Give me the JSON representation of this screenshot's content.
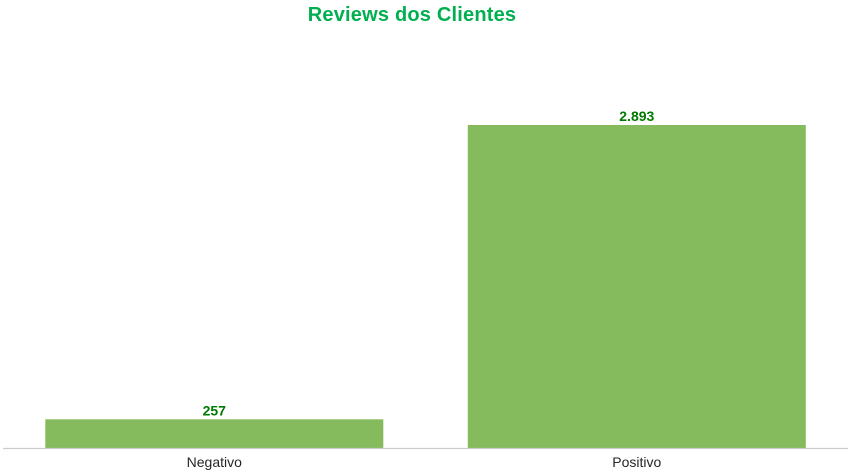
{
  "chart_data": {
    "type": "bar",
    "title": "Reviews dos Clientes",
    "categories": [
      "Negativo",
      "Positivo"
    ],
    "values": [
      257,
      2893
    ],
    "value_labels": [
      "257",
      "2.893"
    ],
    "xlabel": "",
    "ylabel": "",
    "ylim": [
      0,
      3750
    ],
    "grid": false,
    "colors": {
      "bar": "#86bb5d",
      "title": "#00b050",
      "value_label": "#007a00",
      "axis": "#cccccc",
      "tick_text": "#262626"
    }
  }
}
